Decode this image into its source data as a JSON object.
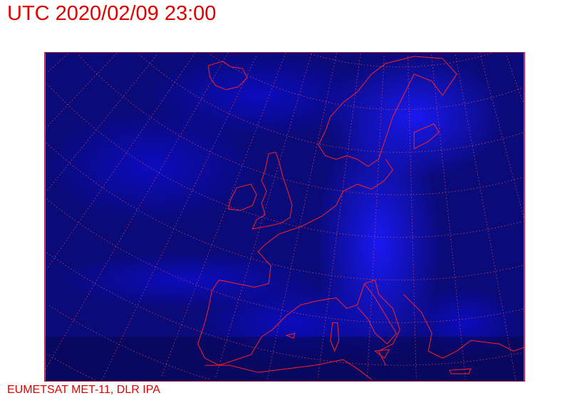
{
  "header": {
    "title": "UTC 2020/02/09 23:00"
  },
  "footer": {
    "credit": "EUMETSAT MET-11, DLR IPA"
  },
  "map": {
    "imagery": "satellite infrared composite, Europe and North Atlantic",
    "colors": {
      "background_dark": "#05054a",
      "cloud_bright": "#1010ff",
      "coastline": "#ff2020",
      "graticule": "#ff5050",
      "text": "#e00000"
    }
  }
}
